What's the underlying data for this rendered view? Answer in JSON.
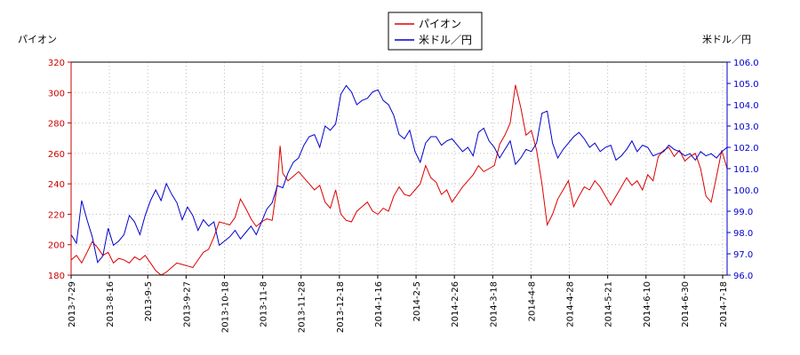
{
  "chart_data": {
    "type": "line",
    "legend": {
      "position": "top-center",
      "entries": [
        "パイオン",
        "米ドル／円"
      ]
    },
    "y_left_label": "パイオン",
    "y_right_label": "米ドル／円",
    "y_left_lim": [
      180,
      320
    ],
    "y_left_ticks": [
      "180",
      "200",
      "220",
      "240",
      "260",
      "280",
      "300",
      "320"
    ],
    "y_right_lim": [
      96.0,
      106.0
    ],
    "y_right_ticks": [
      "96.0",
      "97.0",
      "98.0",
      "99.0",
      "100.0",
      "101.0",
      "102.0",
      "103.0",
      "104.0",
      "105.0",
      "106.0"
    ],
    "x_ticks": [
      "2013-7-29",
      "2013-8-16",
      "2013-9-5",
      "2013-9-27",
      "2013-10-18",
      "2013-11-8",
      "2013-11-28",
      "2013-12-18",
      "2014-1-16",
      "2014-2-5",
      "2014-2-26",
      "2014-3-18",
      "2014-4-8",
      "2014-4-28",
      "2014-5-21",
      "2014-6-10",
      "2014-6-30",
      "2014-7-18"
    ],
    "grid": true,
    "colors": {
      "series1": "#dd0000",
      "series2": "#0000cc",
      "grid": "#bbbbbb",
      "left_axis": "#cc0000",
      "right_axis": "#0000cc"
    },
    "x_index_range": [
      0,
      248
    ],
    "series": [
      {
        "name": "パイオン",
        "axis": "left",
        "points": [
          [
            0,
            190
          ],
          [
            2,
            193
          ],
          [
            4,
            188
          ],
          [
            6,
            195
          ],
          [
            8,
            202
          ],
          [
            10,
            198
          ],
          [
            12,
            193
          ],
          [
            14,
            195
          ],
          [
            16,
            188
          ],
          [
            18,
            191
          ],
          [
            20,
            190
          ],
          [
            22,
            188
          ],
          [
            24,
            192
          ],
          [
            26,
            190
          ],
          [
            28,
            193
          ],
          [
            30,
            188
          ],
          [
            32,
            183
          ],
          [
            34,
            180
          ],
          [
            36,
            182
          ],
          [
            38,
            185
          ],
          [
            40,
            188
          ],
          [
            42,
            187
          ],
          [
            44,
            186
          ],
          [
            46,
            185
          ],
          [
            48,
            190
          ],
          [
            50,
            195
          ],
          [
            52,
            197
          ],
          [
            54,
            205
          ],
          [
            56,
            215
          ],
          [
            58,
            214
          ],
          [
            60,
            213
          ],
          [
            62,
            218
          ],
          [
            64,
            230
          ],
          [
            66,
            224
          ],
          [
            68,
            217
          ],
          [
            70,
            212
          ],
          [
            72,
            215
          ],
          [
            74,
            217
          ],
          [
            76,
            216
          ],
          [
            78,
            240
          ],
          [
            79,
            265
          ],
          [
            80,
            247
          ],
          [
            82,
            242
          ],
          [
            84,
            245
          ],
          [
            86,
            248
          ],
          [
            88,
            244
          ],
          [
            90,
            240
          ],
          [
            92,
            236
          ],
          [
            94,
            239
          ],
          [
            96,
            228
          ],
          [
            98,
            224
          ],
          [
            100,
            236
          ],
          [
            102,
            220
          ],
          [
            104,
            216
          ],
          [
            106,
            215
          ],
          [
            108,
            222
          ],
          [
            110,
            225
          ],
          [
            112,
            228
          ],
          [
            114,
            222
          ],
          [
            116,
            220
          ],
          [
            118,
            224
          ],
          [
            120,
            222
          ],
          [
            122,
            232
          ],
          [
            124,
            238
          ],
          [
            126,
            233
          ],
          [
            128,
            232
          ],
          [
            130,
            236
          ],
          [
            132,
            240
          ],
          [
            134,
            252
          ],
          [
            136,
            244
          ],
          [
            138,
            241
          ],
          [
            140,
            233
          ],
          [
            142,
            236
          ],
          [
            144,
            228
          ],
          [
            146,
            233
          ],
          [
            148,
            238
          ],
          [
            150,
            242
          ],
          [
            152,
            246
          ],
          [
            154,
            252
          ],
          [
            156,
            248
          ],
          [
            158,
            250
          ],
          [
            160,
            252
          ],
          [
            162,
            266
          ],
          [
            164,
            272
          ],
          [
            166,
            280
          ],
          [
            168,
            305
          ],
          [
            170,
            290
          ],
          [
            172,
            272
          ],
          [
            174,
            275
          ],
          [
            176,
            262
          ],
          [
            178,
            240
          ],
          [
            180,
            213
          ],
          [
            182,
            220
          ],
          [
            184,
            230
          ],
          [
            186,
            236
          ],
          [
            188,
            242
          ],
          [
            190,
            225
          ],
          [
            192,
            232
          ],
          [
            194,
            238
          ],
          [
            196,
            236
          ],
          [
            198,
            242
          ],
          [
            200,
            238
          ],
          [
            202,
            232
          ],
          [
            204,
            226
          ],
          [
            206,
            232
          ],
          [
            208,
            238
          ],
          [
            210,
            244
          ],
          [
            212,
            239
          ],
          [
            214,
            242
          ],
          [
            216,
            236
          ],
          [
            218,
            246
          ],
          [
            220,
            242
          ],
          [
            222,
            258
          ],
          [
            224,
            262
          ],
          [
            226,
            264
          ],
          [
            228,
            258
          ],
          [
            230,
            262
          ],
          [
            232,
            255
          ],
          [
            234,
            258
          ],
          [
            236,
            260
          ],
          [
            238,
            250
          ],
          [
            240,
            232
          ],
          [
            242,
            228
          ],
          [
            244,
            245
          ],
          [
            246,
            262
          ],
          [
            248,
            250
          ]
        ]
      },
      {
        "name": "米ドル／円",
        "axis": "right",
        "points": [
          [
            0,
            97.9
          ],
          [
            2,
            97.5
          ],
          [
            4,
            99.5
          ],
          [
            6,
            98.6
          ],
          [
            8,
            97.8
          ],
          [
            10,
            96.6
          ],
          [
            12,
            96.9
          ],
          [
            14,
            98.2
          ],
          [
            16,
            97.4
          ],
          [
            18,
            97.6
          ],
          [
            20,
            97.9
          ],
          [
            22,
            98.8
          ],
          [
            24,
            98.5
          ],
          [
            26,
            97.9
          ],
          [
            28,
            98.8
          ],
          [
            30,
            99.5
          ],
          [
            32,
            100.0
          ],
          [
            34,
            99.5
          ],
          [
            36,
            100.3
          ],
          [
            38,
            99.8
          ],
          [
            40,
            99.4
          ],
          [
            42,
            98.6
          ],
          [
            44,
            99.2
          ],
          [
            46,
            98.8
          ],
          [
            48,
            98.1
          ],
          [
            50,
            98.6
          ],
          [
            52,
            98.3
          ],
          [
            54,
            98.5
          ],
          [
            56,
            97.4
          ],
          [
            58,
            97.6
          ],
          [
            60,
            97.8
          ],
          [
            62,
            98.1
          ],
          [
            64,
            97.7
          ],
          [
            66,
            98.0
          ],
          [
            68,
            98.3
          ],
          [
            70,
            97.9
          ],
          [
            72,
            98.5
          ],
          [
            74,
            99.1
          ],
          [
            76,
            99.4
          ],
          [
            78,
            100.2
          ],
          [
            80,
            100.1
          ],
          [
            82,
            100.8
          ],
          [
            84,
            101.3
          ],
          [
            86,
            101.5
          ],
          [
            88,
            102.1
          ],
          [
            90,
            102.5
          ],
          [
            92,
            102.6
          ],
          [
            94,
            102.0
          ],
          [
            96,
            103.0
          ],
          [
            98,
            102.8
          ],
          [
            100,
            103.1
          ],
          [
            102,
            104.5
          ],
          [
            104,
            104.9
          ],
          [
            106,
            104.6
          ],
          [
            108,
            104.0
          ],
          [
            110,
            104.2
          ],
          [
            112,
            104.3
          ],
          [
            114,
            104.6
          ],
          [
            116,
            104.7
          ],
          [
            118,
            104.2
          ],
          [
            120,
            104.0
          ],
          [
            122,
            103.5
          ],
          [
            124,
            102.6
          ],
          [
            126,
            102.4
          ],
          [
            128,
            102.8
          ],
          [
            130,
            101.8
          ],
          [
            132,
            101.3
          ],
          [
            134,
            102.2
          ],
          [
            136,
            102.5
          ],
          [
            138,
            102.5
          ],
          [
            140,
            102.1
          ],
          [
            142,
            102.3
          ],
          [
            144,
            102.4
          ],
          [
            146,
            102.1
          ],
          [
            148,
            101.8
          ],
          [
            150,
            102.0
          ],
          [
            152,
            101.6
          ],
          [
            154,
            102.7
          ],
          [
            156,
            102.9
          ],
          [
            158,
            102.3
          ],
          [
            160,
            102.0
          ],
          [
            162,
            101.5
          ],
          [
            164,
            101.9
          ],
          [
            166,
            102.3
          ],
          [
            168,
            101.2
          ],
          [
            170,
            101.5
          ],
          [
            172,
            101.9
          ],
          [
            174,
            101.8
          ],
          [
            176,
            102.2
          ],
          [
            178,
            103.6
          ],
          [
            180,
            103.7
          ],
          [
            182,
            102.2
          ],
          [
            184,
            101.5
          ],
          [
            186,
            101.9
          ],
          [
            188,
            102.2
          ],
          [
            190,
            102.5
          ],
          [
            192,
            102.7
          ],
          [
            194,
            102.4
          ],
          [
            196,
            102.0
          ],
          [
            198,
            102.2
          ],
          [
            200,
            101.8
          ],
          [
            202,
            102.0
          ],
          [
            204,
            102.1
          ],
          [
            206,
            101.4
          ],
          [
            208,
            101.6
          ],
          [
            210,
            101.9
          ],
          [
            212,
            102.3
          ],
          [
            214,
            101.8
          ],
          [
            216,
            102.1
          ],
          [
            218,
            102.0
          ],
          [
            220,
            101.6
          ],
          [
            222,
            101.7
          ],
          [
            224,
            101.8
          ],
          [
            226,
            102.1
          ],
          [
            228,
            101.9
          ],
          [
            230,
            101.8
          ],
          [
            232,
            101.6
          ],
          [
            234,
            101.7
          ],
          [
            236,
            101.4
          ],
          [
            238,
            101.8
          ],
          [
            240,
            101.6
          ],
          [
            242,
            101.7
          ],
          [
            244,
            101.5
          ],
          [
            246,
            101.8
          ],
          [
            248,
            102.0
          ]
        ]
      }
    ]
  }
}
